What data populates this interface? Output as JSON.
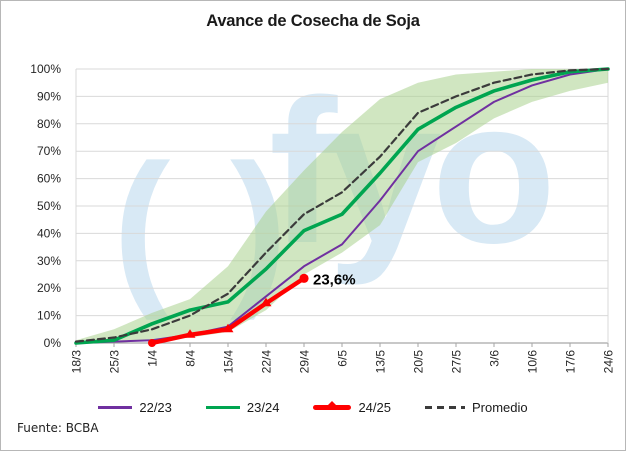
{
  "title": "Avance de Cosecha de Soja",
  "source": "Fuente: BCBA",
  "watermark": {
    "parens": "( )",
    "text": "fyo"
  },
  "legend": [
    {
      "label": "22/23",
      "color": "#7030A0",
      "style": "solid-thin"
    },
    {
      "label": "23/24",
      "color": "#00A550",
      "style": "solid-thick"
    },
    {
      "label": "24/25",
      "color": "#FF0000",
      "style": "thick-with-marker"
    },
    {
      "label": "Promedio",
      "color": "#3B3B3B",
      "style": "dashed"
    }
  ],
  "chart_data": {
    "type": "line",
    "title": "Avance de Cosecha de Soja",
    "xlabel": "",
    "ylabel": "",
    "ylim": [
      0,
      100
    ],
    "grid": "horizontal",
    "legend_position": "bottom",
    "yticks": [
      "0%",
      "10%",
      "20%",
      "30%",
      "40%",
      "50%",
      "60%",
      "70%",
      "80%",
      "90%",
      "100%"
    ],
    "categories": [
      "18/3",
      "25/3",
      "1/4",
      "8/4",
      "15/4",
      "22/4",
      "29/4",
      "6/5",
      "13/5",
      "20/5",
      "27/5",
      "3/6",
      "10/6",
      "17/6",
      "24/6"
    ],
    "band": {
      "name": "rango-min-max",
      "color": "#A9D18E",
      "opacity": 0.55,
      "max": [
        1,
        5,
        11,
        16,
        28,
        48,
        63,
        77,
        89,
        95,
        98,
        99,
        100,
        100,
        100
      ],
      "min": [
        0,
        0,
        1,
        2,
        4,
        12,
        25,
        33,
        43,
        66,
        73,
        82,
        88,
        92,
        95
      ]
    },
    "series": [
      {
        "name": "22/23",
        "color": "#7030A0",
        "width": 2,
        "values": [
          0,
          0.5,
          1,
          3,
          6,
          17,
          28,
          36,
          52,
          70,
          79,
          88,
          94,
          98,
          100
        ]
      },
      {
        "name": "23/24",
        "color": "#00A550",
        "width": 3.6,
        "values": [
          0,
          1,
          7,
          12,
          15,
          27,
          41,
          47,
          62,
          78,
          86,
          92,
          96,
          99,
          100
        ]
      },
      {
        "name": "24/25",
        "color": "#FF0000",
        "width": 4.4,
        "marker": true,
        "label_last": "23,6%",
        "values": [
          null,
          null,
          0,
          3,
          5,
          14.5,
          23.6,
          null,
          null,
          null,
          null,
          null,
          null,
          null,
          null
        ]
      },
      {
        "name": "Promedio",
        "color": "#3B3B3B",
        "width": 2.2,
        "dash": "7 4",
        "values": [
          0.5,
          2,
          5,
          10,
          18,
          33,
          47,
          55,
          68,
          84,
          90,
          95,
          98,
          99.5,
          100
        ]
      }
    ]
  }
}
